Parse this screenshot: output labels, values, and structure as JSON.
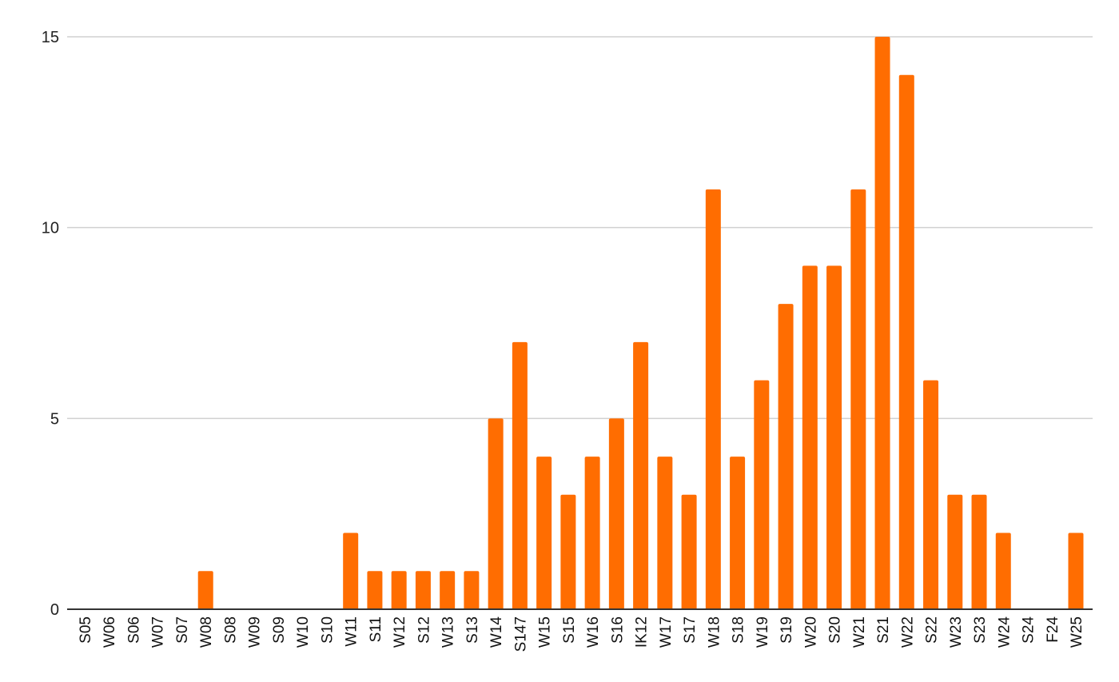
{
  "chart_data": {
    "type": "bar",
    "title": "",
    "xlabel": "",
    "ylabel": "",
    "ylim": [
      0,
      15
    ],
    "yticks": [
      0,
      5,
      10,
      15
    ],
    "grid": true,
    "legend": "none",
    "bar_color": "#ff6d01",
    "grid_color": "#d0d0d0",
    "axis_color": "#333333",
    "categories": [
      "S05",
      "W06",
      "S06",
      "W07",
      "S07",
      "W08",
      "S08",
      "W09",
      "S09",
      "W10",
      "S10",
      "W11",
      "S11",
      "W12",
      "S12",
      "W13",
      "S13",
      "W14",
      "S147",
      "W15",
      "S15",
      "W16",
      "S16",
      "IK12",
      "W17",
      "S17",
      "W18",
      "S18",
      "W19",
      "S19",
      "W20",
      "S20",
      "W21",
      "S21",
      "W22",
      "S22",
      "W23",
      "S23",
      "W24",
      "S24",
      "F24",
      "W25"
    ],
    "values": [
      0,
      0,
      0,
      0,
      0,
      1,
      0,
      0,
      0,
      0,
      0,
      2,
      1,
      1,
      1,
      1,
      1,
      5,
      7,
      4,
      3,
      4,
      5,
      7,
      4,
      3,
      11,
      4,
      6,
      8,
      9,
      9,
      11,
      15,
      14,
      6,
      3,
      3,
      2,
      0,
      0,
      2
    ]
  }
}
